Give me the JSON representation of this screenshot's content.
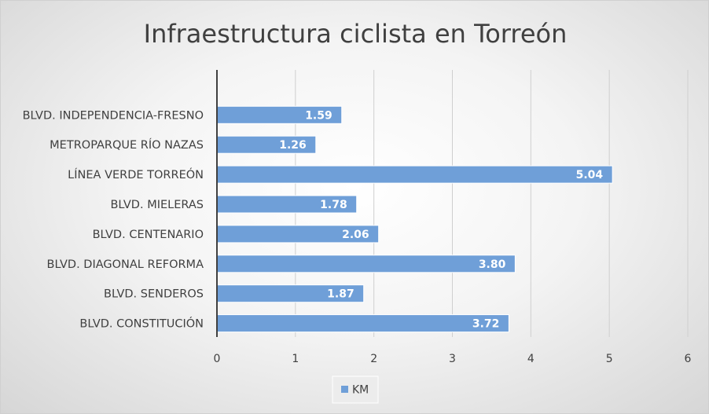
{
  "chart_data": {
    "type": "bar",
    "orientation": "horizontal",
    "title": "Infraestructura ciclista en Torreón",
    "categories": [
      "BLVD. INDEPENDENCIA-FRESNO",
      "METROPARQUE RÍO NAZAS",
      "LÍNEA VERDE TORREÓN",
      "BLVD. MIELERAS",
      "BLVD. CENTENARIO",
      "BLVD. DIAGONAL REFORMA",
      "BLVD. SENDEROS",
      "BLVD. CONSTITUCIÓN"
    ],
    "series": [
      {
        "name": "KM",
        "values": [
          1.59,
          1.26,
          5.04,
          1.78,
          2.06,
          3.8,
          1.87,
          3.72
        ],
        "labels": [
          "1.59",
          "1.26",
          "5.04",
          "1.78",
          "2.06",
          "3.80",
          "1.87",
          "3.72"
        ],
        "color": "#6f9fd8"
      }
    ],
    "xlim": [
      0,
      6
    ],
    "xticks": [
      "0",
      "1",
      "2",
      "3",
      "4",
      "5",
      "6"
    ],
    "xlabel": "",
    "ylabel": "",
    "grid": "vertical",
    "legend": "bottom"
  },
  "colors": {
    "bar": "#6f9fd8",
    "bar_border": "#ffffff",
    "grid": "#cfcfcf",
    "axis": "#404040",
    "text": "#404040"
  }
}
